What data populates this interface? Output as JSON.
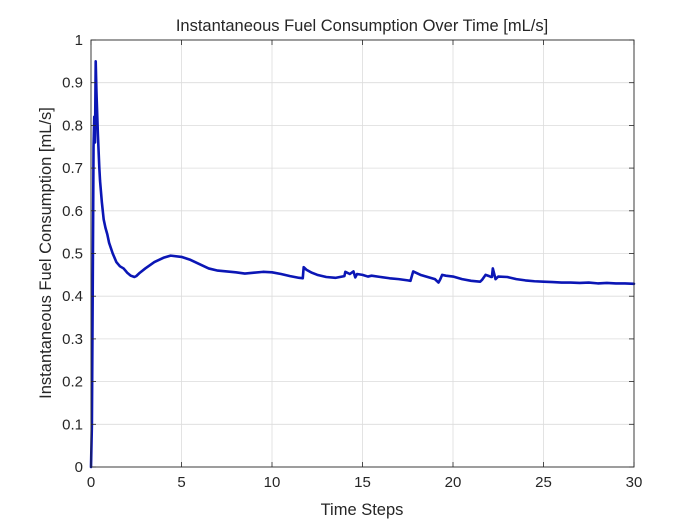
{
  "chart_data": {
    "type": "line",
    "title": "Instantaneous Fuel Consumption Over Time [mL/s]",
    "xlabel": "Time Steps",
    "ylabel": "Instantaneous Fuel Consumption [mL/s]",
    "xlim": [
      0,
      30
    ],
    "ylim": [
      0,
      1
    ],
    "xticks": [
      0,
      5,
      10,
      15,
      20,
      25,
      30
    ],
    "yticks": [
      0,
      0.1,
      0.2,
      0.3,
      0.4,
      0.5,
      0.6,
      0.7,
      0.8,
      0.9,
      1
    ],
    "xtick_labels": [
      "0",
      "5",
      "10",
      "15",
      "20",
      "25",
      "30"
    ],
    "ytick_labels": [
      "0",
      "0.1",
      "0.2",
      "0.3",
      "0.4",
      "0.5",
      "0.6",
      "0.7",
      "0.8",
      "0.9",
      "1"
    ],
    "grid": true,
    "line_color": "#0b16b5",
    "series": [
      {
        "x": [
          0.0,
          0.05,
          0.1,
          0.14,
          0.18,
          0.22,
          0.26,
          0.3,
          0.34,
          0.38,
          0.42,
          0.46,
          0.5,
          0.6,
          0.7,
          0.8,
          0.9,
          1.0,
          1.2,
          1.4,
          1.6,
          1.8,
          2.0,
          2.2,
          2.4,
          2.5,
          2.7,
          3.0,
          3.5,
          4.0,
          4.4,
          5.0,
          5.5,
          6.0,
          6.5,
          7.0,
          7.5,
          8.0,
          8.5,
          9.0,
          9.5,
          10.0,
          10.5,
          11.0,
          11.5,
          11.7,
          11.75,
          11.9,
          12.2,
          12.5,
          13.0,
          13.5,
          14.0,
          14.05,
          14.3,
          14.5,
          14.6,
          14.7,
          15.0,
          15.3,
          15.5,
          16.0,
          16.5,
          17.0,
          17.5,
          17.65,
          17.8,
          18.2,
          18.6,
          19.0,
          19.2,
          19.3,
          19.4,
          19.6,
          20.0,
          20.5,
          21.0,
          21.5,
          21.6,
          21.8,
          22.0,
          22.1,
          22.15,
          22.2,
          22.35,
          22.5,
          23.0,
          23.5,
          24.0,
          24.5,
          25.0,
          25.5,
          26.0,
          26.5,
          27.0,
          27.5,
          28.0,
          28.5,
          29.0,
          29.5,
          30.0
        ],
        "y": [
          0.0,
          0.1,
          0.45,
          0.75,
          0.82,
          0.76,
          0.95,
          0.88,
          0.83,
          0.78,
          0.74,
          0.7,
          0.67,
          0.62,
          0.58,
          0.56,
          0.545,
          0.525,
          0.5,
          0.48,
          0.47,
          0.465,
          0.455,
          0.448,
          0.445,
          0.447,
          0.455,
          0.465,
          0.48,
          0.49,
          0.495,
          0.492,
          0.485,
          0.475,
          0.465,
          0.46,
          0.458,
          0.456,
          0.453,
          0.455,
          0.457,
          0.456,
          0.452,
          0.447,
          0.443,
          0.442,
          0.468,
          0.462,
          0.455,
          0.45,
          0.445,
          0.443,
          0.447,
          0.457,
          0.452,
          0.458,
          0.444,
          0.452,
          0.45,
          0.446,
          0.448,
          0.445,
          0.442,
          0.44,
          0.437,
          0.436,
          0.458,
          0.45,
          0.445,
          0.44,
          0.432,
          0.44,
          0.45,
          0.448,
          0.446,
          0.44,
          0.436,
          0.434,
          0.438,
          0.45,
          0.447,
          0.445,
          0.445,
          0.465,
          0.44,
          0.446,
          0.445,
          0.44,
          0.437,
          0.435,
          0.434,
          0.433,
          0.432,
          0.432,
          0.431,
          0.432,
          0.43,
          0.431,
          0.43,
          0.43,
          0.429
        ]
      }
    ]
  }
}
